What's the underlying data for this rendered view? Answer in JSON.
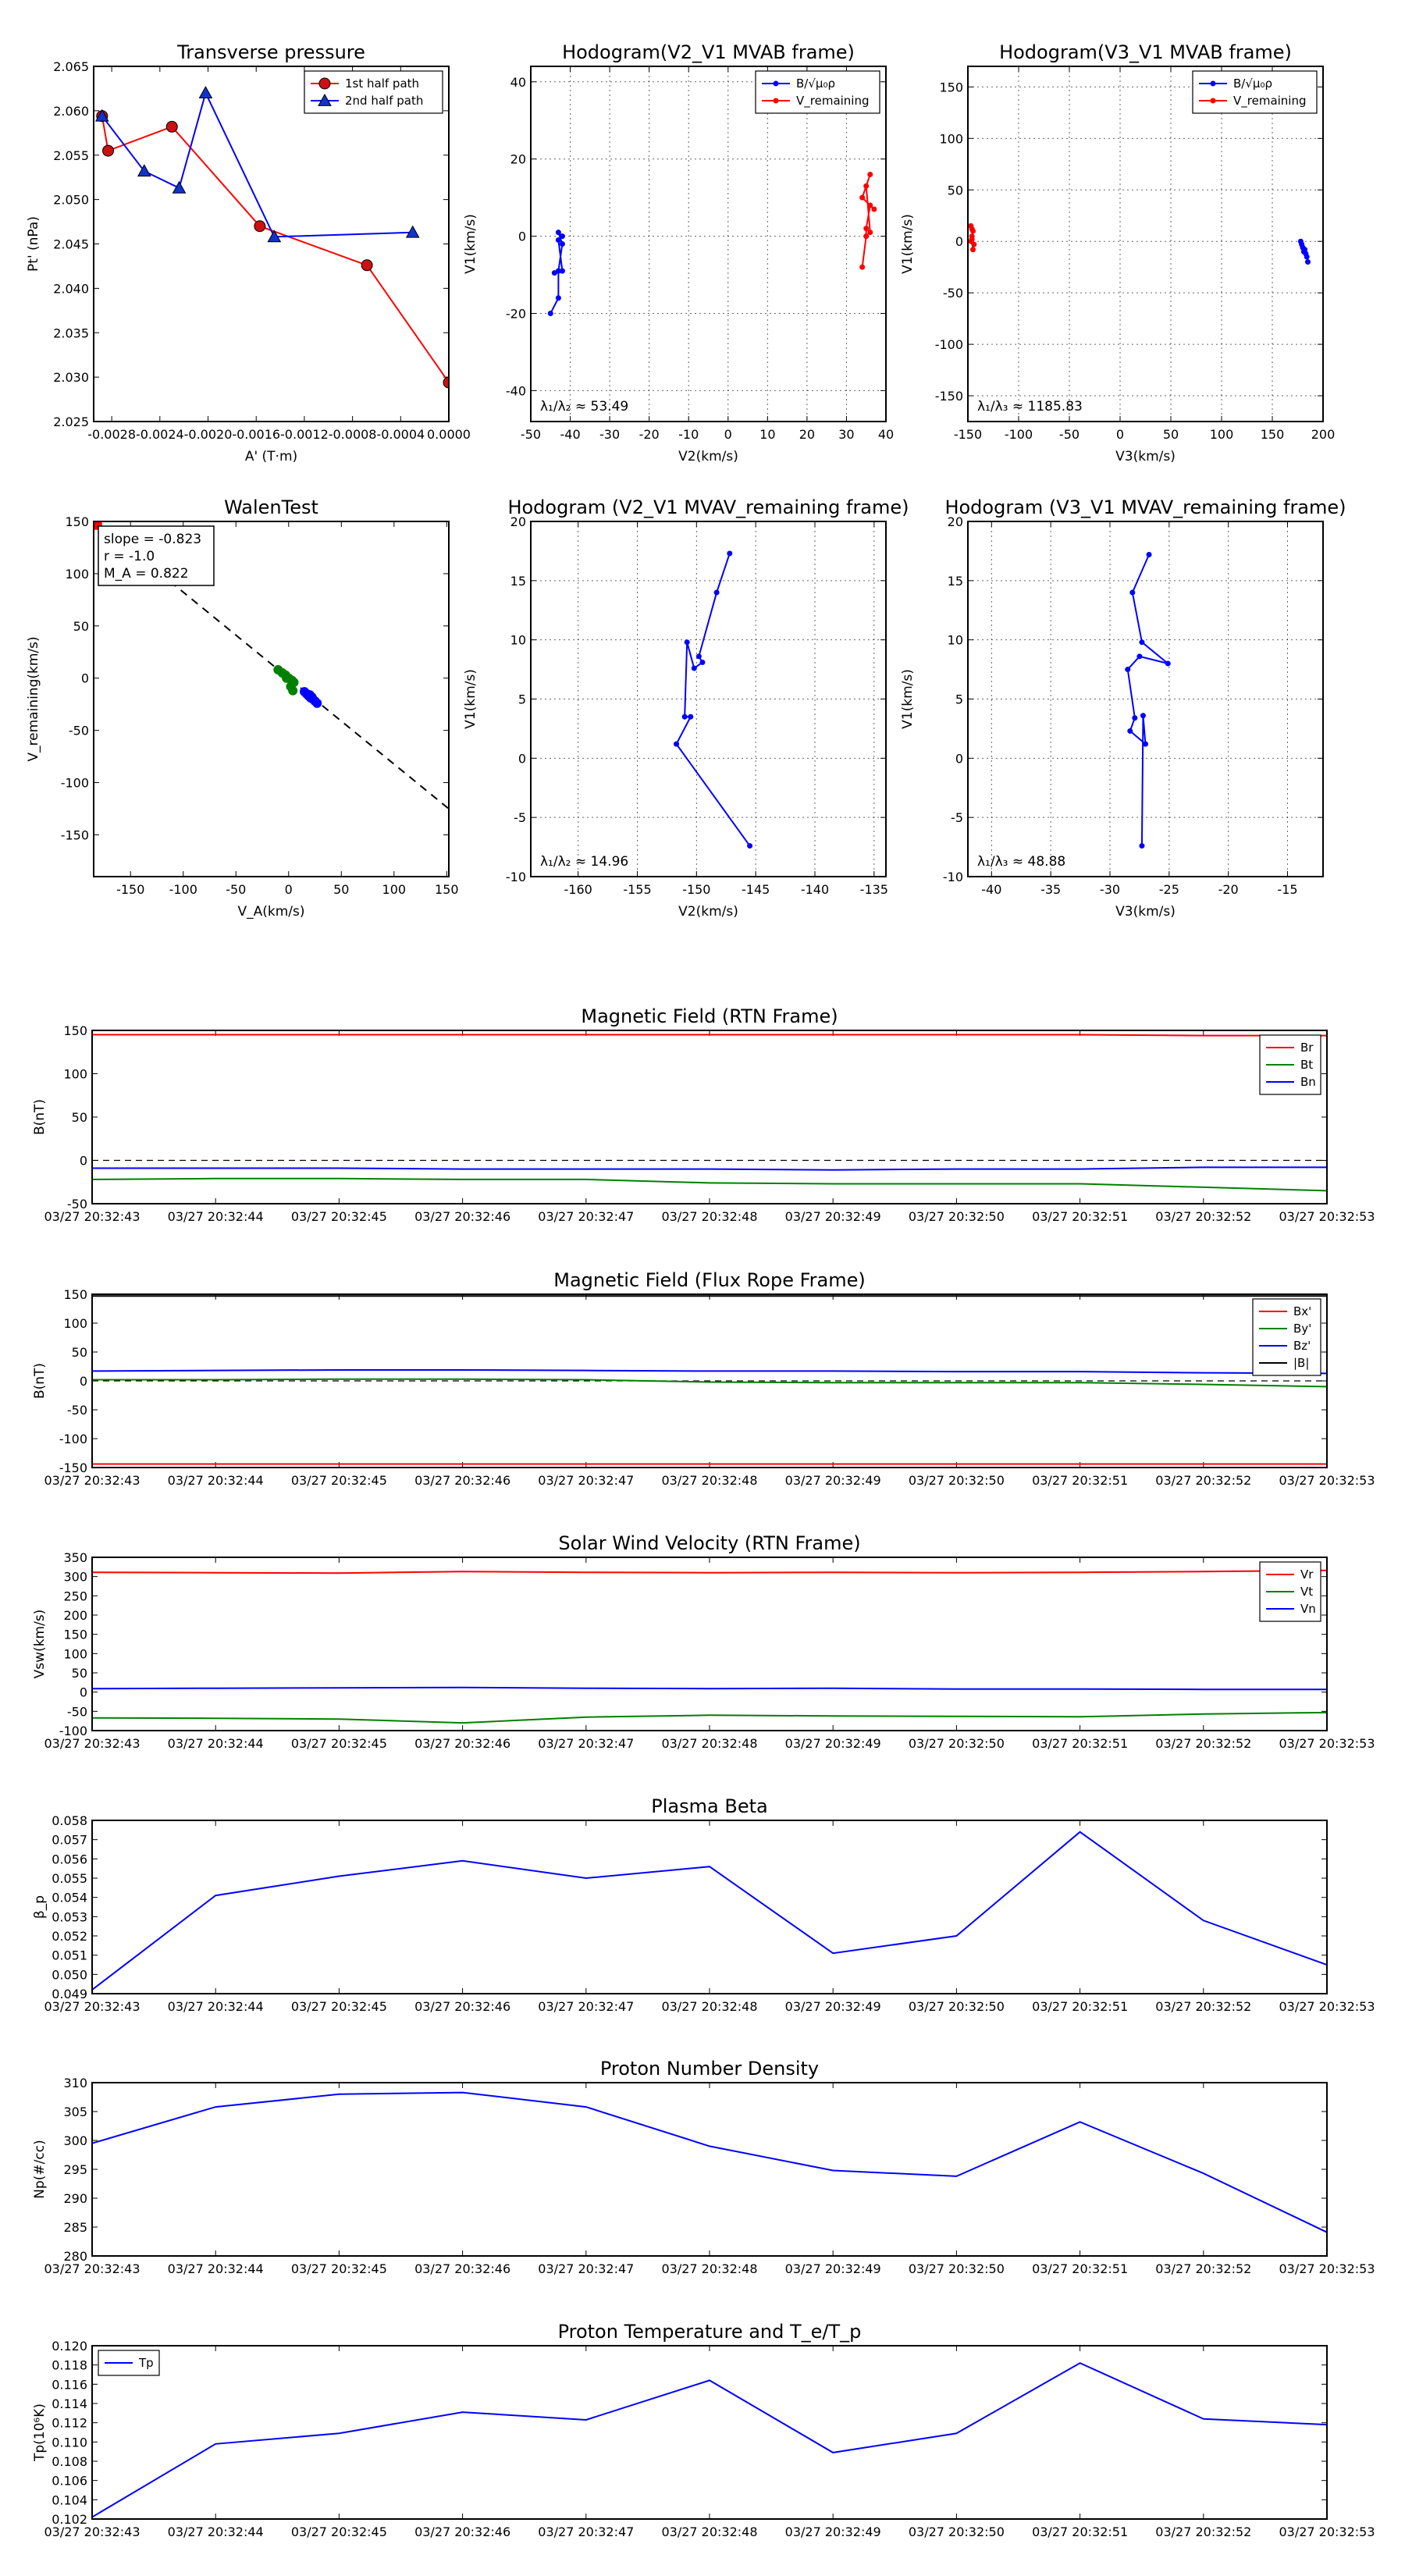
{
  "common_time_labels": [
    "03/27 20:32:43",
    "03/27 20:32:44",
    "03/27 20:32:45",
    "03/27 20:32:46",
    "03/27 20:32:47",
    "03/27 20:32:48",
    "03/27 20:32:49",
    "03/27 20:32:50",
    "03/27 20:32:51",
    "03/27 20:32:52",
    "03/27 20:32:53"
  ],
  "chart_data": [
    {
      "id": "tp",
      "type": "line",
      "title": "Transverse pressure",
      "xlabel": "A' (T·m)",
      "ylabel": "Pt' (nPa)",
      "xlim": [
        -0.00295,
        0.0
      ],
      "ylim": [
        2.025,
        2.065
      ],
      "grid": false,
      "xticks": [
        -0.0028,
        -0.0024,
        -0.002,
        -0.0016,
        -0.0012,
        -0.0008,
        -0.0004,
        0.0
      ],
      "xtick_labels": [
        "-0.0028",
        "-0.0024",
        "-0.0020",
        "-0.0016",
        "-0.0012",
        "-0.0008",
        "-0.0004",
        "0.0000"
      ],
      "yticks": [
        2.025,
        2.03,
        2.035,
        2.04,
        2.045,
        2.05,
        2.055,
        2.06,
        2.065
      ],
      "ytick_labels": [
        "2.025",
        "2.030",
        "2.035",
        "2.040",
        "2.045",
        "2.050",
        "2.055",
        "2.060",
        "2.065"
      ],
      "legend_loc": "top-right",
      "series": [
        {
          "name": "1st half path",
          "color": "#ff0000",
          "marker": "circle",
          "fill": "#cc1111",
          "x": [
            -0.00288,
            -0.00283,
            -0.0023,
            -0.00157,
            -0.00068,
            0.0
          ],
          "y": [
            2.0594,
            2.0555,
            2.0582,
            2.047,
            2.0426,
            2.0294
          ]
        },
        {
          "name": "2nd half path",
          "color": "#0000ff",
          "marker": "triangle",
          "fill": "#1133cc",
          "x": [
            -0.00288,
            -0.00253,
            -0.00224,
            -0.00202,
            -0.00145,
            -0.0003
          ],
          "y": [
            2.0594,
            2.0532,
            2.0513,
            2.062,
            2.0458,
            2.0463
          ]
        }
      ]
    },
    {
      "id": "h21",
      "type": "line",
      "title": "Hodogram(V2_V1 MVAB frame)",
      "xlabel": "V2(km/s)",
      "ylabel": "V1(km/s)",
      "xlim": [
        -50,
        40
      ],
      "ylim": [
        -48,
        44
      ],
      "grid": true,
      "xticks": [
        -50,
        -40,
        -30,
        -20,
        -10,
        0,
        10,
        20,
        30,
        40
      ],
      "xtick_labels": [
        "-50",
        "-40",
        "-30",
        "-20",
        "-10",
        "0",
        "10",
        "20",
        "30",
        "40"
      ],
      "yticks": [
        -40,
        -20,
        0,
        20,
        40
      ],
      "ytick_labels": [
        "-40",
        "-20",
        "0",
        "20",
        "40"
      ],
      "legend_loc": "top-right",
      "annotation": "λ₁/λ₂ ≈ 53.49",
      "series": [
        {
          "name": "B/√μ₀ρ",
          "color": "#0000ff",
          "marker": "dot",
          "x": [
            -45,
            -43,
            -43,
            -42,
            -43,
            -42,
            -43,
            -42,
            -44
          ],
          "y": [
            -20,
            -16,
            -9,
            -2,
            1,
            0,
            -1,
            -9,
            -9.5
          ]
        },
        {
          "name": "V_remaining",
          "color": "#ff0000",
          "marker": "dot",
          "x": [
            34,
            35,
            35,
            36,
            37,
            34,
            36,
            35,
            36
          ],
          "y": [
            -8,
            0,
            2,
            8,
            7,
            10,
            16,
            13,
            1
          ]
        }
      ]
    },
    {
      "id": "h31",
      "type": "line",
      "title": "Hodogram(V3_V1 MVAB frame)",
      "xlabel": "V3(km/s)",
      "ylabel": "V1(km/s)",
      "xlim": [
        -150,
        200
      ],
      "ylim": [
        -175,
        170
      ],
      "grid": true,
      "xticks": [
        -150,
        -100,
        -50,
        0,
        50,
        100,
        150,
        200
      ],
      "xtick_labels": [
        "-150",
        "-100",
        "-50",
        "0",
        "50",
        "100",
        "150",
        "200"
      ],
      "yticks": [
        -150,
        -100,
        -50,
        0,
        50,
        100,
        150
      ],
      "ytick_labels": [
        "-150",
        "-100",
        "-50",
        "0",
        "50",
        "100",
        "150"
      ],
      "legend_loc": "top-right",
      "annotation": "λ₁/λ₃ ≈ 1185.83",
      "series": [
        {
          "name": "B/√μ₀ρ",
          "color": "#0000ff",
          "marker": "dot",
          "x": [
            178,
            179,
            180,
            182,
            183,
            181,
            184,
            185
          ],
          "y": [
            0,
            -3,
            -6,
            -8,
            -12,
            -10,
            -15,
            -20
          ]
        },
        {
          "name": "V_remaining",
          "color": "#ff0000",
          "marker": "dot",
          "x": [
            -147,
            -146,
            -145,
            -146,
            -147,
            -144,
            -145,
            -146
          ],
          "y": [
            15,
            12,
            10,
            5,
            0,
            -3,
            -8,
            2
          ]
        }
      ]
    },
    {
      "id": "walen",
      "type": "scatter",
      "title": "WalenTest",
      "xlabel": "V_A(km/s)",
      "ylabel": "V_remaining(km/s)",
      "xlim": [
        -185,
        152
      ],
      "ylim": [
        -190,
        150
      ],
      "grid": false,
      "xticks": [
        -150,
        -100,
        -50,
        0,
        50,
        100,
        150
      ],
      "xtick_labels": [
        "-150",
        "-100",
        "-50",
        "0",
        "50",
        "100",
        "150"
      ],
      "yticks": [
        -150,
        -100,
        -50,
        0,
        50,
        100,
        150
      ],
      "ytick_labels": [
        "-150",
        "-100",
        "-50",
        "0",
        "50",
        "100",
        "150"
      ],
      "stats_lines": [
        "slope = -0.823",
        "r = -1.0",
        "M_A = 0.822"
      ],
      "fit_line": {
        "slope": -0.823,
        "intercept": 0.0
      },
      "series": [
        {
          "name": "green points",
          "color": "#008000",
          "x": [
            -10,
            -6,
            -3,
            0,
            3,
            5,
            2,
            -2,
            4
          ],
          "y": [
            8,
            5,
            3,
            0,
            -2,
            -4,
            -8,
            0,
            -12
          ]
        },
        {
          "name": "blue points",
          "color": "#0000ff",
          "x": [
            15,
            17,
            19,
            21,
            23,
            25,
            22,
            20,
            27
          ],
          "y": [
            -13,
            -15,
            -17,
            -19,
            -20,
            -22,
            -18,
            -16,
            -24
          ]
        },
        {
          "name": "red marker",
          "color": "#ff0000",
          "x": [
            -183
          ],
          "y": [
            148
          ]
        }
      ]
    },
    {
      "id": "h21r",
      "type": "line",
      "title": "Hodogram (V2_V1 MVAV_remaining frame)",
      "xlabel": "V2(km/s)",
      "ylabel": "V1(km/s)",
      "xlim": [
        -164,
        -134
      ],
      "ylim": [
        -10,
        20
      ],
      "grid": true,
      "xticks": [
        -160,
        -155,
        -150,
        -145,
        -140,
        -135
      ],
      "xtick_labels": [
        "-160",
        "-155",
        "-150",
        "-145",
        "-140",
        "-135"
      ],
      "yticks": [
        -10,
        -5,
        0,
        5,
        10,
        15,
        20
      ],
      "ytick_labels": [
        "-10",
        "-5",
        "0",
        "5",
        "10",
        "15",
        "20"
      ],
      "annotation": "λ₁/λ₂ ≈ 14.96",
      "series": [
        {
          "name": "hodogram",
          "color": "#0000ff",
          "marker": "dot",
          "x": [
            -147.2,
            -148.3,
            -149.8,
            -149.5,
            -150.2,
            -150.8,
            -151.0,
            -150.5,
            -151.7,
            -145.5
          ],
          "y": [
            17.3,
            14.0,
            8.6,
            8.1,
            7.6,
            9.8,
            3.5,
            3.5,
            1.2,
            -7.4
          ]
        }
      ]
    },
    {
      "id": "h31r",
      "type": "line",
      "title": "Hodogram (V3_V1 MVAV_remaining frame)",
      "xlabel": "V3(km/s)",
      "ylabel": "V1(km/s)",
      "xlim": [
        -42,
        -12
      ],
      "ylim": [
        -10,
        20
      ],
      "grid": true,
      "xticks": [
        -40,
        -35,
        -30,
        -25,
        -20,
        -15
      ],
      "xtick_labels": [
        "-40",
        "-35",
        "-30",
        "-25",
        "-20",
        "-15"
      ],
      "yticks": [
        -10,
        -5,
        0,
        5,
        10,
        15,
        20
      ],
      "ytick_labels": [
        "-10",
        "-5",
        "0",
        "5",
        "10",
        "15",
        "20"
      ],
      "annotation": "λ₁/λ₃ ≈ 48.88",
      "series": [
        {
          "name": "hodogram",
          "color": "#0000ff",
          "marker": "dot",
          "x": [
            -26.7,
            -28.1,
            -27.3,
            -25.1,
            -27.5,
            -28.5,
            -27.9,
            -28.3,
            -27.0,
            -27.2,
            -27.3
          ],
          "y": [
            17.2,
            14.0,
            9.8,
            8.0,
            8.6,
            7.5,
            3.4,
            2.3,
            1.2,
            3.6,
            -7.4
          ]
        }
      ]
    },
    {
      "id": "mag_rtn",
      "type": "line",
      "title": "Magnetic Field (RTN Frame)",
      "ylabel": "B(nT)",
      "ylim": [
        -50,
        150
      ],
      "yticks": [
        -50,
        0,
        50,
        100,
        150
      ],
      "ytick_labels": [
        "-50",
        "0",
        "50",
        "100",
        "150"
      ],
      "zero_line": true,
      "legend_loc": "top-right",
      "series": [
        {
          "name": "Br",
          "color": "#ff0000",
          "y": [
            145,
            145,
            145,
            145,
            145,
            145,
            145,
            145,
            145,
            144,
            144
          ]
        },
        {
          "name": "Bt",
          "color": "#008000",
          "y": [
            -22,
            -21,
            -21,
            -22,
            -22,
            -26,
            -27,
            -27,
            -27,
            -31,
            -35
          ]
        },
        {
          "name": "Bn",
          "color": "#0000ff",
          "y": [
            -9,
            -9,
            -9,
            -10,
            -10,
            -10,
            -11,
            -10,
            -10,
            -8,
            -8
          ]
        }
      ]
    },
    {
      "id": "mag_fr",
      "type": "line",
      "title": "Magnetic Field (Flux Rope Frame)",
      "ylabel": "B(nT)",
      "ylim": [
        -150,
        150
      ],
      "yticks": [
        -150,
        -100,
        -50,
        0,
        50,
        100,
        150
      ],
      "ytick_labels": [
        "-150",
        "-100",
        "-50",
        "0",
        "50",
        "100",
        "150"
      ],
      "zero_line": true,
      "legend_loc": "top-right",
      "series": [
        {
          "name": "Bx'",
          "color": "#ff0000",
          "y": [
            -144,
            -144,
            -144,
            -144,
            -144,
            -144,
            -144,
            -144,
            -144,
            -144,
            -144
          ]
        },
        {
          "name": "By'",
          "color": "#008000",
          "y": [
            2,
            2,
            3,
            3,
            2,
            -2,
            -3,
            -3,
            -3,
            -6,
            -10
          ]
        },
        {
          "name": "Bz'",
          "color": "#0000ff",
          "y": [
            17,
            18,
            19,
            19,
            18,
            17,
            17,
            16,
            16,
            14,
            13
          ]
        },
        {
          "name": "|B|",
          "color": "#000000",
          "y": [
            147,
            147,
            147,
            147,
            147,
            147,
            147,
            147,
            147,
            147,
            147
          ]
        }
      ]
    },
    {
      "id": "vsw",
      "type": "line",
      "title": "Solar Wind Velocity (RTN Frame)",
      "ylabel": "Vsw(km/s)",
      "ylim": [
        -100,
        350
      ],
      "yticks": [
        -100,
        -50,
        0,
        50,
        100,
        150,
        200,
        250,
        300,
        350
      ],
      "ytick_labels": [
        "-100",
        "-50",
        "0",
        "50",
        "100",
        "150",
        "200",
        "250",
        "300",
        "350"
      ],
      "legend_loc": "top-right",
      "series": [
        {
          "name": "Vr",
          "color": "#ff0000",
          "y": [
            311,
            310,
            309,
            313,
            311,
            310,
            311,
            310,
            311,
            313,
            316
          ]
        },
        {
          "name": "Vt",
          "color": "#008000",
          "y": [
            -67,
            -68,
            -70,
            -80,
            -65,
            -60,
            -62,
            -63,
            -64,
            -57,
            -53
          ]
        },
        {
          "name": "Vn",
          "color": "#0000ff",
          "y": [
            9,
            10,
            11,
            12,
            10,
            9,
            10,
            8,
            8,
            7,
            7
          ]
        }
      ]
    },
    {
      "id": "beta",
      "type": "line",
      "title": "Plasma Beta",
      "ylabel": "β_p",
      "ylim": [
        0.049,
        0.058
      ],
      "yticks": [
        0.049,
        0.05,
        0.051,
        0.052,
        0.053,
        0.054,
        0.055,
        0.056,
        0.057,
        0.058
      ],
      "ytick_labels": [
        "0.049",
        "0.050",
        "0.051",
        "0.052",
        "0.053",
        "0.054",
        "0.055",
        "0.056",
        "0.057",
        "0.058"
      ],
      "series": [
        {
          "name": "beta",
          "color": "#0000ff",
          "y": [
            0.0492,
            0.0541,
            0.0551,
            0.0559,
            0.055,
            0.0556,
            0.0511,
            0.052,
            0.0574,
            0.0528,
            0.0505
          ]
        }
      ]
    },
    {
      "id": "np",
      "type": "line",
      "title": "Proton Number Density",
      "ylabel": "Np(#/cc)",
      "ylim": [
        280,
        310
      ],
      "yticks": [
        280,
        285,
        290,
        295,
        300,
        305,
        310
      ],
      "ytick_labels": [
        "280",
        "285",
        "290",
        "295",
        "300",
        "305",
        "310"
      ],
      "series": [
        {
          "name": "Np",
          "color": "#0000ff",
          "y": [
            299.5,
            305.8,
            308.0,
            308.3,
            305.8,
            299.0,
            294.8,
            293.8,
            303.2,
            294.3,
            284.1
          ]
        }
      ]
    },
    {
      "id": "temp",
      "type": "line",
      "title": "Proton Temperature and T_e/T_p",
      "ylabel": "Tp(10⁶K)",
      "ylim": [
        0.102,
        0.12
      ],
      "yticks": [
        0.102,
        0.104,
        0.106,
        0.108,
        0.11,
        0.112,
        0.114,
        0.116,
        0.118,
        0.12
      ],
      "ytick_labels": [
        "0.102",
        "0.104",
        "0.106",
        "0.108",
        "0.110",
        "0.112",
        "0.114",
        "0.116",
        "0.118",
        "0.120"
      ],
      "legend_loc": "top-left",
      "series": [
        {
          "name": "Tp",
          "color": "#0000ff",
          "y": [
            0.1022,
            0.1098,
            0.1109,
            0.1131,
            0.1123,
            0.1164,
            0.1089,
            0.1109,
            0.1182,
            0.1124,
            0.1118
          ]
        }
      ]
    }
  ]
}
